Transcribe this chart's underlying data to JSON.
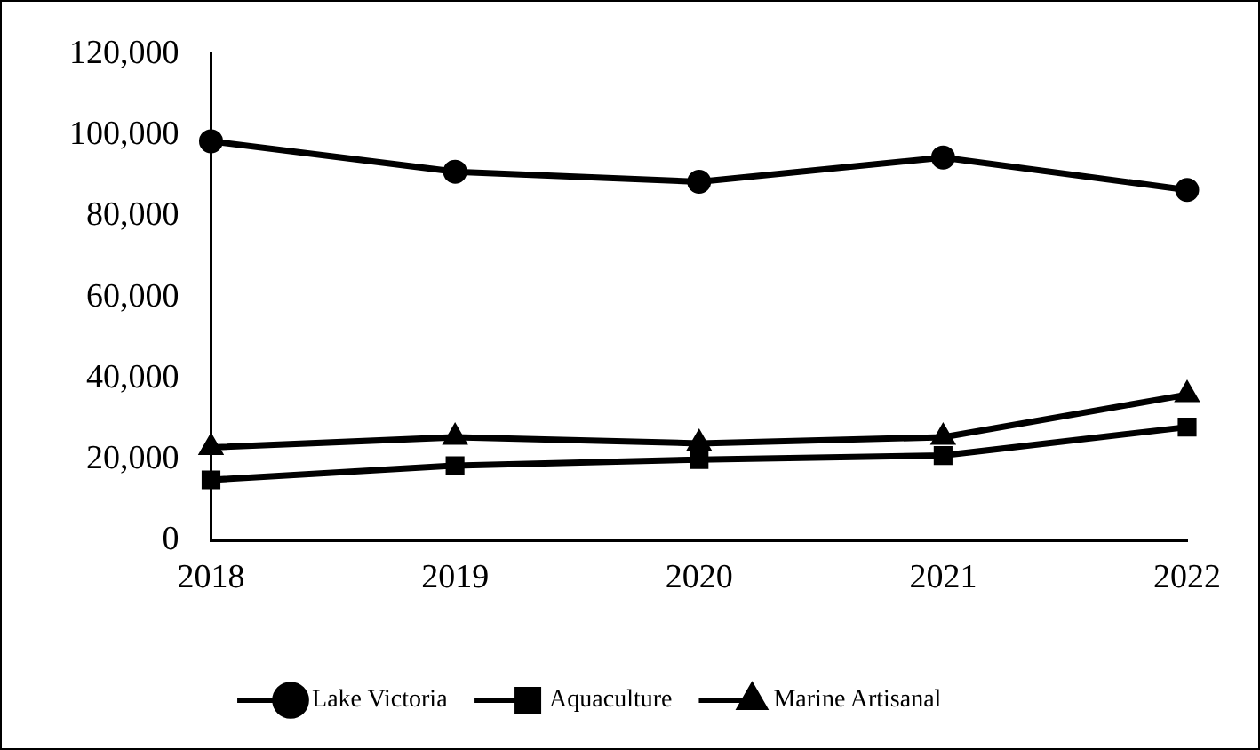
{
  "chart_data": {
    "type": "line",
    "categories": [
      "2018",
      "2019",
      "2020",
      "2021",
      "2022"
    ],
    "series": [
      {
        "name": "Lake Victoria",
        "color": "#000000",
        "marker": "circle",
        "values": [
          98500,
          91000,
          88500,
          94500,
          86500
        ]
      },
      {
        "name": "Aquaculture",
        "color": "#000000",
        "marker": "square",
        "values": [
          15000,
          18500,
          20000,
          21000,
          28000
        ]
      },
      {
        "name": "Marine Artisanal",
        "color": "#000000",
        "marker": "triangle",
        "values": [
          23000,
          25500,
          24000,
          25500,
          36000
        ]
      }
    ],
    "ylim": [
      0,
      120000
    ],
    "yticks": [
      0,
      {
        "value": 20000,
        "label": "20,000"
      },
      {
        "value": 40000,
        "label": "40,000"
      },
      {
        "value": 60000,
        "label": "60,000"
      },
      {
        "value": 80000,
        "label": "80,000"
      },
      {
        "value": 100000,
        "label": "100,000"
      },
      {
        "value": 120000,
        "label": "120,000"
      }
    ],
    "grid": false,
    "legend": "bottom",
    "line_style": "solid"
  }
}
